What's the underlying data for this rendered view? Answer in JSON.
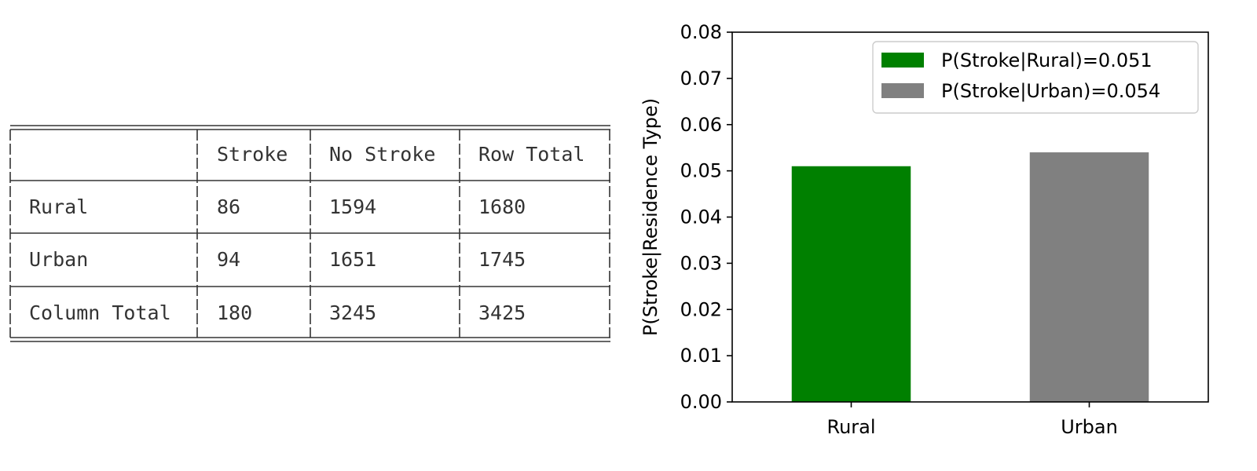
{
  "table": {
    "headers": [
      "",
      "Stroke",
      "No Stroke",
      "Row Total"
    ],
    "rows": [
      [
        "Rural",
        "86",
        "1594",
        "1680"
      ],
      [
        "Urban",
        "94",
        "1651",
        "1745"
      ],
      [
        "Column Total",
        "180",
        "3245",
        "3425"
      ]
    ]
  },
  "chart_data": {
    "type": "bar",
    "title": "",
    "xlabel": "",
    "ylabel": "P(Stroke|Residence Type)",
    "categories": [
      "Rural",
      "Urban"
    ],
    "values": [
      0.051,
      0.054
    ],
    "colors": [
      "#008000",
      "#808080"
    ],
    "legend": [
      "P(Stroke|Rural)=0.051",
      "P(Stroke|Urban)=0.054"
    ],
    "legend_position": "top-right",
    "ylim": [
      0,
      0.08
    ],
    "yticks": [
      "0.00",
      "0.01",
      "0.02",
      "0.03",
      "0.04",
      "0.05",
      "0.06",
      "0.07",
      "0.08"
    ],
    "grid": false
  }
}
